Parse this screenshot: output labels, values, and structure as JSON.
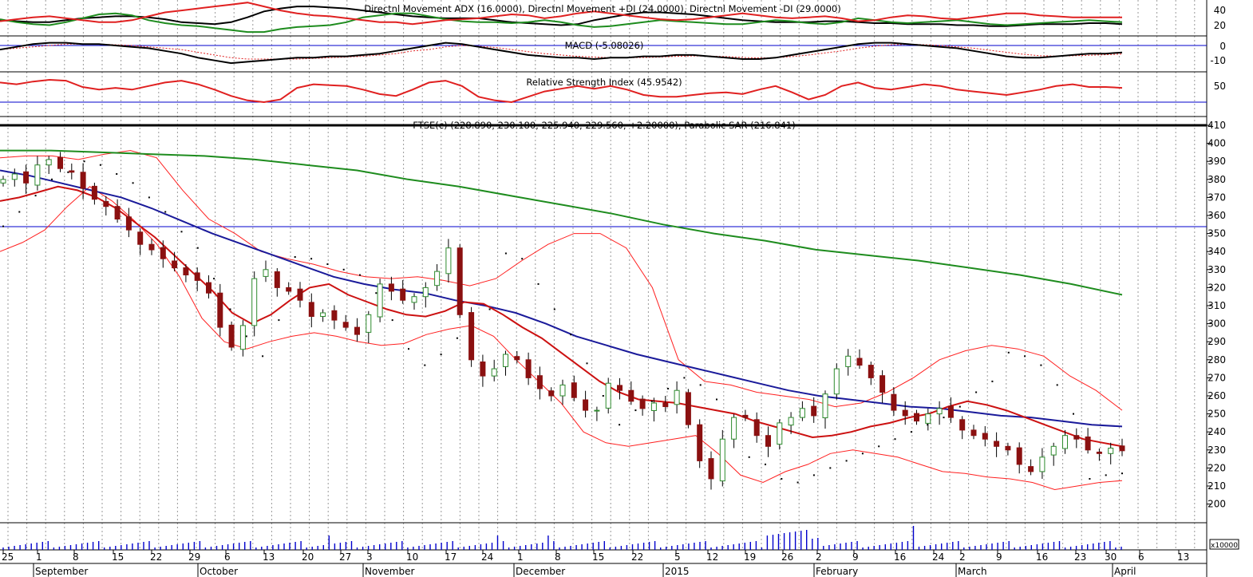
{
  "window": {
    "colors": {
      "bull": "#2e8b2e",
      "bear": "#8b1010",
      "ma_short": "#cc1111",
      "ma_mid": "#1a1a9a",
      "ma_long": "#1e8c1e",
      "band": "#ff2020",
      "sar": "#000000",
      "volume": "#0000cc",
      "level": "#0000cc"
    }
  },
  "chart_data": [
    {
      "type": "line",
      "panel": "dmi",
      "title": "Directnl Movement ADX (16.0000), Directnl Movement +DI (24.0000), Directnl Movement -DI (29.0000)",
      "y_ticks": [
        "40",
        "20"
      ],
      "ylim": [
        10,
        45
      ],
      "series": [
        {
          "name": "ADX",
          "color": "#000000",
          "values": [
            26,
            25,
            24,
            24,
            26,
            28,
            29,
            30,
            30,
            29,
            27,
            24,
            23,
            22,
            24,
            29,
            35,
            38,
            40,
            40,
            39,
            38,
            36,
            34,
            32,
            30,
            29,
            28,
            28,
            28,
            26,
            24,
            23,
            22,
            21,
            22,
            26,
            29,
            32,
            34,
            34,
            33,
            32,
            30,
            28,
            26,
            25,
            24,
            24,
            24,
            25,
            25,
            24,
            23,
            23,
            22,
            22,
            22,
            21,
            21,
            20,
            20,
            21,
            22,
            22,
            22,
            23,
            23,
            22
          ]
        },
        {
          "name": "+DI",
          "color": "#1e8c1e",
          "values": [
            27,
            24,
            22,
            21,
            24,
            28,
            32,
            33,
            31,
            26,
            23,
            21,
            20,
            18,
            16,
            14,
            14,
            17,
            19,
            20,
            21,
            24,
            29,
            31,
            33,
            33,
            30,
            27,
            25,
            24,
            24,
            23,
            24,
            26,
            24,
            21,
            19,
            20,
            22,
            24,
            26,
            25,
            24,
            23,
            22,
            22,
            24,
            26,
            25,
            23,
            22,
            24,
            28,
            26,
            24,
            23,
            24,
            25,
            26,
            24,
            22,
            21,
            22,
            23,
            24,
            25,
            26,
            25,
            24
          ]
        },
        {
          "name": "-DI",
          "color": "#e02020",
          "values": [
            25,
            27,
            29,
            30,
            28,
            26,
            24,
            24,
            26,
            30,
            34,
            36,
            38,
            40,
            42,
            44,
            40,
            36,
            33,
            31,
            30,
            28,
            26,
            24,
            24,
            22,
            24,
            26,
            27,
            28,
            30,
            32,
            31,
            28,
            30,
            33,
            35,
            33,
            31,
            29,
            27,
            26,
            27,
            29,
            31,
            33,
            31,
            29,
            28,
            29,
            30,
            28,
            25,
            26,
            29,
            31,
            30,
            28,
            27,
            29,
            31,
            33,
            33,
            31,
            30,
            29,
            29,
            29,
            29
          ]
        }
      ]
    },
    {
      "type": "line",
      "panel": "macd",
      "title": "MACD (-5.08026)",
      "y_ticks": [
        "0",
        "-10"
      ],
      "ylim": [
        -16,
        4
      ],
      "series": [
        {
          "name": "MACD",
          "color": "#000000",
          "values": [
            -3,
            -1,
            1,
            2,
            2,
            1,
            1,
            0,
            -1,
            -2,
            -4,
            -6,
            -9,
            -11,
            -13,
            -12,
            -11,
            -10,
            -9,
            -9,
            -8,
            -8,
            -7,
            -6,
            -4,
            -2,
            0,
            2,
            1,
            -1,
            -3,
            -5,
            -7,
            -8,
            -9,
            -9,
            -10,
            -9,
            -9,
            -8,
            -8,
            -7,
            -7,
            -8,
            -9,
            -10,
            -10,
            -9,
            -7,
            -5,
            -3,
            -1,
            1,
            2,
            2,
            1,
            0,
            -1,
            -2,
            -4,
            -6,
            -8,
            -9,
            -9,
            -8,
            -7,
            -6,
            -6,
            -5.1
          ]
        },
        {
          "name": "signal",
          "color": "#e02020",
          "values": [
            -3,
            -2,
            -1,
            0,
            1,
            1,
            1,
            0.5,
            0,
            -1,
            -2,
            -3,
            -5,
            -7,
            -9,
            -10,
            -10,
            -10,
            -10,
            -9.5,
            -9,
            -8.5,
            -8,
            -7,
            -6,
            -4,
            -3,
            -1,
            0,
            -0.5,
            -1.5,
            -3,
            -4.5,
            -6,
            -7,
            -8,
            -8.5,
            -9,
            -9,
            -8.8,
            -8.5,
            -8,
            -7.7,
            -7.8,
            -8.2,
            -8.8,
            -9.2,
            -9,
            -8.2,
            -7,
            -5.5,
            -4,
            -2,
            -0.5,
            0.5,
            0.8,
            0.6,
            0,
            -1,
            -2,
            -3.5,
            -5,
            -6.5,
            -7.5,
            -7.8,
            -7.6,
            -7.2,
            -6.8,
            -6.3
          ]
        }
      ]
    },
    {
      "type": "line",
      "panel": "rsi",
      "title": "Relative Strength Index (45.9542)",
      "y_ticks": [
        "50"
      ],
      "ylim": [
        20,
        65
      ],
      "series": [
        {
          "name": "RSI",
          "color": "#e02020",
          "values": [
            52,
            50,
            53,
            55,
            54,
            47,
            44,
            46,
            44,
            48,
            52,
            54,
            50,
            44,
            37,
            32,
            30,
            33,
            46,
            50,
            49,
            48,
            44,
            39,
            37,
            44,
            52,
            54,
            48,
            36,
            32,
            30,
            36,
            42,
            45,
            48,
            45,
            48,
            44,
            38,
            36,
            36,
            38,
            40,
            41,
            39,
            44,
            48,
            41,
            33,
            38,
            48,
            52,
            46,
            44,
            47,
            50,
            48,
            44,
            42,
            40,
            38,
            41,
            44,
            48,
            50,
            47,
            47,
            46
          ]
        }
      ]
    },
    {
      "type": "candlestick",
      "panel": "price",
      "title": "FTSE(c) (228.890, 230.180, 225.940, 229.560, +2.20000), Parabolic SAR (216.841)",
      "y_ticks": [
        "410",
        "400",
        "390",
        "380",
        "370",
        "360",
        "350",
        "340",
        "330",
        "320",
        "310",
        "300",
        "290",
        "280",
        "270",
        "260",
        "250",
        "240",
        "230",
        "220",
        "210",
        "200"
      ],
      "ylim": [
        190,
        410
      ],
      "horizontal_levels": [
        354,
        410
      ],
      "x_tick_labels": [
        "25",
        "1",
        "8",
        "15",
        "22",
        "29",
        "6",
        "13",
        "20",
        "27",
        "3",
        "10",
        "17",
        "24",
        "1",
        "8",
        "15",
        "22",
        "5",
        "12",
        "19",
        "26",
        "2",
        "9",
        "16",
        "24",
        "2",
        "9",
        "16",
        "23",
        "30",
        "6",
        "13"
      ],
      "month_labels": [
        "September",
        "October",
        "November",
        "December",
        "2015",
        "February",
        "March",
        "April"
      ],
      "series": [
        {
          "name": "close",
          "values": [
            380,
            383,
            378,
            388,
            391,
            386,
            384,
            375,
            369,
            365,
            358,
            352,
            344,
            341,
            336,
            331,
            327,
            324,
            317,
            298,
            287,
            299,
            325,
            330,
            320,
            318,
            313,
            304,
            306,
            302,
            298,
            294,
            305,
            322,
            318,
            313,
            315,
            320,
            329,
            342,
            305,
            280,
            271,
            275,
            283,
            280,
            270,
            264,
            260,
            266,
            259,
            252,
            252,
            267,
            263,
            257,
            253,
            256,
            254,
            263,
            244,
            224,
            214,
            236,
            248,
            248,
            238,
            232,
            245,
            248,
            253,
            249,
            261,
            275,
            282,
            277,
            270,
            262,
            252,
            249,
            246,
            250,
            253,
            248,
            241,
            238,
            236,
            232,
            230,
            222,
            218,
            226,
            232,
            238,
            236,
            230,
            228,
            231,
            229.56
          ]
        },
        {
          "name": "MA short",
          "color": "#cc1111",
          "values": [
            368,
            370,
            373,
            376,
            374,
            370,
            364,
            356,
            348,
            338,
            328,
            318,
            306,
            300,
            305,
            313,
            320,
            322,
            316,
            312,
            308,
            305,
            304,
            307,
            312,
            311,
            305,
            298,
            292,
            284,
            276,
            268,
            262,
            258,
            257,
            256,
            254,
            252,
            250,
            246,
            243,
            240,
            237,
            238,
            240,
            243,
            245,
            248,
            250,
            254,
            257,
            255,
            252,
            248,
            244,
            240,
            236,
            234,
            232
          ]
        },
        {
          "name": "MA mid",
          "color": "#1a1a9a",
          "values": [
            385,
            382,
            378,
            374,
            370,
            364,
            357,
            350,
            344,
            338,
            332,
            326,
            322,
            319,
            317,
            313,
            310,
            306,
            300,
            293,
            288,
            283,
            279,
            275,
            271,
            267,
            263,
            260,
            258,
            256,
            254,
            253,
            251,
            249,
            248,
            246,
            244,
            243
          ]
        },
        {
          "name": "MA long",
          "color": "#1e8c1e",
          "values": [
            396,
            396,
            395,
            394,
            393,
            391,
            388,
            385,
            380,
            376,
            371,
            366,
            361,
            355,
            350,
            346,
            341,
            338,
            335,
            331,
            327,
            322,
            316
          ]
        },
        {
          "name": "Parabolic SAR",
          "values": [
            354,
            362,
            371,
            380,
            384,
            390,
            388,
            383,
            378,
            370,
            362,
            351,
            342,
            325,
            308,
            293,
            282,
            302,
            337,
            336,
            333,
            330,
            327,
            317,
            302,
            286,
            277,
            283,
            292,
            300,
            308,
            339,
            336,
            322,
            308,
            294,
            278,
            260,
            244,
            252,
            257,
            264,
            270,
            266,
            258,
            246,
            226,
            222,
            214,
            212,
            216,
            220,
            224,
            228,
            232,
            236,
            240,
            244,
            248,
            254,
            262,
            268,
            284,
            282,
            277,
            266,
            250,
            214,
            216,
            217
          ]
        },
        {
          "name": "upper band",
          "values": [
            392,
            393,
            393,
            391,
            394,
            396,
            392,
            374,
            358,
            350,
            340,
            336,
            333,
            329,
            326,
            325,
            326,
            324,
            321,
            325,
            335,
            344,
            350,
            350,
            342,
            320,
            280,
            268,
            266,
            262,
            260,
            258,
            254,
            256,
            262,
            270,
            280,
            285,
            288,
            286,
            282,
            271,
            263,
            252
          ]
        },
        {
          "name": "lower band",
          "values": [
            340,
            345,
            352,
            365,
            376,
            368,
            357,
            344,
            326,
            303,
            290,
            286,
            290,
            293,
            295,
            293,
            290,
            288,
            289,
            294,
            297,
            299,
            293,
            280,
            268,
            256,
            240,
            234,
            232,
            234,
            236,
            238,
            228,
            216,
            212,
            218,
            222,
            228,
            230,
            228,
            226,
            222,
            218,
            217,
            215,
            214,
            212,
            208,
            210,
            212,
            213
          ]
        }
      ],
      "volume_scale_label": "x10000"
    }
  ]
}
